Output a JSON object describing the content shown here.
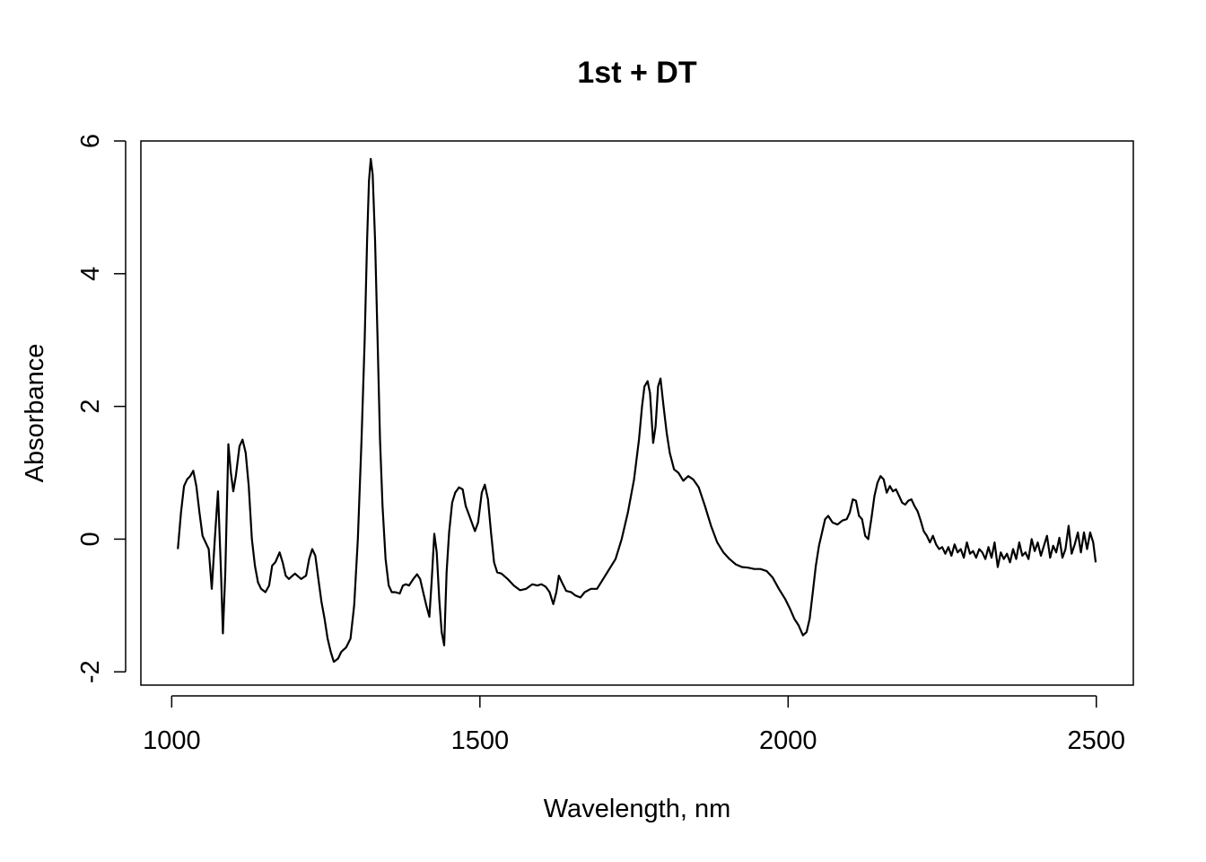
{
  "chart_data": {
    "type": "line",
    "title": "1st + DT",
    "xlabel": "Wavelength, nm",
    "ylabel": "Absorbance",
    "xlim": [
      950,
      2560
    ],
    "ylim": [
      -2.2,
      6
    ],
    "xticks": [
      1000,
      1500,
      2000,
      2500
    ],
    "yticks": [
      -2,
      0,
      2,
      4,
      6
    ],
    "grid": false,
    "series": [
      {
        "color": "#000000",
        "points": [
          [
            1010,
            -0.15
          ],
          [
            1015,
            0.4
          ],
          [
            1020,
            0.8
          ],
          [
            1025,
            0.9
          ],
          [
            1030,
            0.95
          ],
          [
            1035,
            1.03
          ],
          [
            1040,
            0.8
          ],
          [
            1045,
            0.4
          ],
          [
            1050,
            0.05
          ],
          [
            1055,
            -0.05
          ],
          [
            1060,
            -0.15
          ],
          [
            1065,
            -0.75
          ],
          [
            1070,
            0.0
          ],
          [
            1075,
            0.72
          ],
          [
            1080,
            -0.5
          ],
          [
            1083,
            -1.42
          ],
          [
            1087,
            -0.5
          ],
          [
            1092,
            1.43
          ],
          [
            1096,
            1.0
          ],
          [
            1100,
            0.72
          ],
          [
            1104,
            0.95
          ],
          [
            1110,
            1.4
          ],
          [
            1115,
            1.5
          ],
          [
            1120,
            1.3
          ],
          [
            1125,
            0.8
          ],
          [
            1130,
            0.0
          ],
          [
            1135,
            -0.4
          ],
          [
            1140,
            -0.65
          ],
          [
            1145,
            -0.75
          ],
          [
            1152,
            -0.8
          ],
          [
            1158,
            -0.7
          ],
          [
            1163,
            -0.4
          ],
          [
            1168,
            -0.35
          ],
          [
            1175,
            -0.2
          ],
          [
            1180,
            -0.35
          ],
          [
            1185,
            -0.55
          ],
          [
            1190,
            -0.6
          ],
          [
            1200,
            -0.52
          ],
          [
            1210,
            -0.6
          ],
          [
            1218,
            -0.55
          ],
          [
            1223,
            -0.3
          ],
          [
            1228,
            -0.15
          ],
          [
            1233,
            -0.25
          ],
          [
            1238,
            -0.6
          ],
          [
            1243,
            -0.95
          ],
          [
            1248,
            -1.2
          ],
          [
            1253,
            -1.5
          ],
          [
            1258,
            -1.7
          ],
          [
            1263,
            -1.85
          ],
          [
            1270,
            -1.8
          ],
          [
            1275,
            -1.7
          ],
          [
            1283,
            -1.63
          ],
          [
            1290,
            -1.5
          ],
          [
            1296,
            -1.0
          ],
          [
            1302,
            0.0
          ],
          [
            1308,
            1.5
          ],
          [
            1313,
            3.0
          ],
          [
            1317,
            4.5
          ],
          [
            1320,
            5.4
          ],
          [
            1323,
            5.73
          ],
          [
            1326,
            5.5
          ],
          [
            1330,
            4.5
          ],
          [
            1334,
            3.0
          ],
          [
            1338,
            1.5
          ],
          [
            1342,
            0.5
          ],
          [
            1347,
            -0.3
          ],
          [
            1352,
            -0.7
          ],
          [
            1357,
            -0.8
          ],
          [
            1363,
            -0.8
          ],
          [
            1370,
            -0.82
          ],
          [
            1375,
            -0.7
          ],
          [
            1380,
            -0.68
          ],
          [
            1385,
            -0.7
          ],
          [
            1392,
            -0.6
          ],
          [
            1398,
            -0.53
          ],
          [
            1403,
            -0.6
          ],
          [
            1408,
            -0.8
          ],
          [
            1413,
            -1.0
          ],
          [
            1418,
            -1.17
          ],
          [
            1422,
            -0.6
          ],
          [
            1426,
            0.08
          ],
          [
            1430,
            -0.2
          ],
          [
            1434,
            -0.9
          ],
          [
            1438,
            -1.4
          ],
          [
            1442,
            -1.6
          ],
          [
            1446,
            -0.5
          ],
          [
            1450,
            0.1
          ],
          [
            1455,
            0.55
          ],
          [
            1460,
            0.7
          ],
          [
            1466,
            0.78
          ],
          [
            1472,
            0.75
          ],
          [
            1477,
            0.5
          ],
          [
            1483,
            0.35
          ],
          [
            1488,
            0.22
          ],
          [
            1492,
            0.12
          ],
          [
            1497,
            0.25
          ],
          [
            1503,
            0.7
          ],
          [
            1508,
            0.82
          ],
          [
            1513,
            0.6
          ],
          [
            1518,
            0.1
          ],
          [
            1523,
            -0.35
          ],
          [
            1528,
            -0.5
          ],
          [
            1535,
            -0.52
          ],
          [
            1545,
            -0.6
          ],
          [
            1555,
            -0.7
          ],
          [
            1565,
            -0.77
          ],
          [
            1575,
            -0.75
          ],
          [
            1585,
            -0.68
          ],
          [
            1593,
            -0.7
          ],
          [
            1600,
            -0.68
          ],
          [
            1607,
            -0.72
          ],
          [
            1613,
            -0.8
          ],
          [
            1619,
            -0.98
          ],
          [
            1624,
            -0.8
          ],
          [
            1628,
            -0.55
          ],
          [
            1633,
            -0.65
          ],
          [
            1640,
            -0.78
          ],
          [
            1648,
            -0.8
          ],
          [
            1655,
            -0.85
          ],
          [
            1663,
            -0.88
          ],
          [
            1670,
            -0.8
          ],
          [
            1680,
            -0.75
          ],
          [
            1690,
            -0.75
          ],
          [
            1700,
            -0.6
          ],
          [
            1710,
            -0.45
          ],
          [
            1720,
            -0.3
          ],
          [
            1730,
            0.0
          ],
          [
            1740,
            0.4
          ],
          [
            1750,
            0.9
          ],
          [
            1758,
            1.5
          ],
          [
            1763,
            2.0
          ],
          [
            1767,
            2.3
          ],
          [
            1772,
            2.38
          ],
          [
            1776,
            2.2
          ],
          [
            1781,
            1.45
          ],
          [
            1785,
            1.7
          ],
          [
            1789,
            2.3
          ],
          [
            1793,
            2.42
          ],
          [
            1798,
            2.0
          ],
          [
            1803,
            1.6
          ],
          [
            1808,
            1.3
          ],
          [
            1815,
            1.05
          ],
          [
            1822,
            1.0
          ],
          [
            1830,
            0.88
          ],
          [
            1838,
            0.95
          ],
          [
            1846,
            0.9
          ],
          [
            1855,
            0.78
          ],
          [
            1865,
            0.5
          ],
          [
            1875,
            0.2
          ],
          [
            1885,
            -0.05
          ],
          [
            1895,
            -0.2
          ],
          [
            1905,
            -0.3
          ],
          [
            1915,
            -0.38
          ],
          [
            1925,
            -0.42
          ],
          [
            1935,
            -0.43
          ],
          [
            1945,
            -0.45
          ],
          [
            1955,
            -0.45
          ],
          [
            1965,
            -0.48
          ],
          [
            1975,
            -0.58
          ],
          [
            1985,
            -0.75
          ],
          [
            1995,
            -0.9
          ],
          [
            2003,
            -1.05
          ],
          [
            2010,
            -1.2
          ],
          [
            2017,
            -1.3
          ],
          [
            2024,
            -1.45
          ],
          [
            2030,
            -1.4
          ],
          [
            2035,
            -1.2
          ],
          [
            2040,
            -0.8
          ],
          [
            2045,
            -0.4
          ],
          [
            2050,
            -0.1
          ],
          [
            2055,
            0.1
          ],
          [
            2060,
            0.3
          ],
          [
            2065,
            0.35
          ],
          [
            2072,
            0.25
          ],
          [
            2080,
            0.22
          ],
          [
            2088,
            0.28
          ],
          [
            2095,
            0.3
          ],
          [
            2100,
            0.4
          ],
          [
            2105,
            0.6
          ],
          [
            2110,
            0.58
          ],
          [
            2115,
            0.35
          ],
          [
            2120,
            0.3
          ],
          [
            2125,
            0.05
          ],
          [
            2130,
            0.0
          ],
          [
            2135,
            0.3
          ],
          [
            2140,
            0.65
          ],
          [
            2145,
            0.85
          ],
          [
            2150,
            0.95
          ],
          [
            2155,
            0.9
          ],
          [
            2160,
            0.7
          ],
          [
            2165,
            0.8
          ],
          [
            2170,
            0.72
          ],
          [
            2175,
            0.75
          ],
          [
            2180,
            0.65
          ],
          [
            2185,
            0.55
          ],
          [
            2190,
            0.52
          ],
          [
            2195,
            0.58
          ],
          [
            2200,
            0.6
          ],
          [
            2205,
            0.5
          ],
          [
            2210,
            0.42
          ],
          [
            2215,
            0.28
          ],
          [
            2220,
            0.12
          ],
          [
            2225,
            0.05
          ],
          [
            2230,
            -0.05
          ],
          [
            2235,
            0.05
          ],
          [
            2240,
            -0.08
          ],
          [
            2245,
            -0.15
          ],
          [
            2250,
            -0.12
          ],
          [
            2255,
            -0.22
          ],
          [
            2260,
            -0.12
          ],
          [
            2265,
            -0.25
          ],
          [
            2270,
            -0.08
          ],
          [
            2275,
            -0.2
          ],
          [
            2280,
            -0.15
          ],
          [
            2285,
            -0.28
          ],
          [
            2290,
            -0.05
          ],
          [
            2295,
            -0.22
          ],
          [
            2300,
            -0.18
          ],
          [
            2305,
            -0.28
          ],
          [
            2310,
            -0.15
          ],
          [
            2315,
            -0.2
          ],
          [
            2320,
            -0.3
          ],
          [
            2325,
            -0.12
          ],
          [
            2330,
            -0.28
          ],
          [
            2335,
            -0.05
          ],
          [
            2340,
            -0.42
          ],
          [
            2345,
            -0.2
          ],
          [
            2350,
            -0.3
          ],
          [
            2355,
            -0.22
          ],
          [
            2360,
            -0.35
          ],
          [
            2365,
            -0.15
          ],
          [
            2370,
            -0.3
          ],
          [
            2375,
            -0.05
          ],
          [
            2380,
            -0.25
          ],
          [
            2385,
            -0.2
          ],
          [
            2390,
            -0.3
          ],
          [
            2395,
            0.0
          ],
          [
            2400,
            -0.18
          ],
          [
            2405,
            -0.05
          ],
          [
            2410,
            -0.25
          ],
          [
            2415,
            -0.1
          ],
          [
            2420,
            0.05
          ],
          [
            2425,
            -0.28
          ],
          [
            2430,
            -0.1
          ],
          [
            2435,
            -0.2
          ],
          [
            2440,
            0.02
          ],
          [
            2445,
            -0.28
          ],
          [
            2450,
            -0.15
          ],
          [
            2455,
            0.2
          ],
          [
            2460,
            -0.22
          ],
          [
            2465,
            -0.08
          ],
          [
            2470,
            0.1
          ],
          [
            2475,
            -0.2
          ],
          [
            2480,
            0.1
          ],
          [
            2485,
            -0.15
          ],
          [
            2490,
            0.1
          ],
          [
            2495,
            -0.05
          ],
          [
            2499,
            -0.35
          ]
        ]
      }
    ]
  }
}
